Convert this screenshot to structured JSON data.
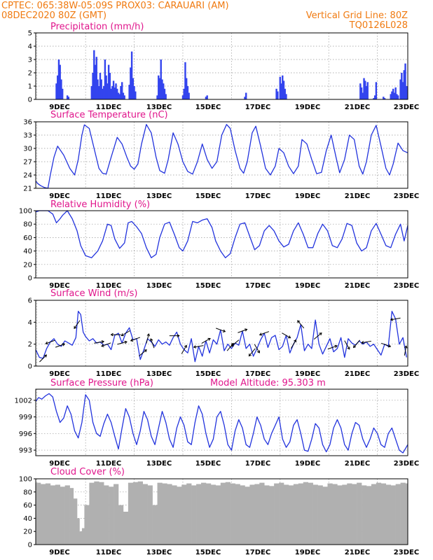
{
  "header": {
    "line1_left": "CPTEC:   065:38W-05:09S   PROX03: CARAUARI (AM)",
    "line2_left": "08DEC2020 80Z (GMT)",
    "line2_right": "Vertical Grid Line: 80Z",
    "line3_right": "TQ0126L028"
  },
  "colors": {
    "line": "#2233dd",
    "bar": "#3344ee",
    "cloud": "#b0b0b0",
    "title": "#e0168c",
    "header": "#f07a10"
  },
  "x_ticks": [
    "9DEC",
    "11DEC",
    "13DEC",
    "15DEC",
    "17DEC",
    "19DEC",
    "21DEC",
    "23DEC"
  ],
  "chart_data": [
    {
      "id": "precip",
      "type": "bar",
      "title": "Precipitation (mm/h)",
      "x_range": [
        0,
        15.3
      ],
      "ylim": [
        0,
        5
      ],
      "yticks": [
        "0",
        "1",
        "2",
        "3",
        "4",
        "5"
      ],
      "x": [
        0.85,
        0.9,
        0.95,
        1.0,
        1.05,
        1.1,
        1.3,
        1.35,
        2.3,
        2.35,
        2.4,
        2.45,
        2.5,
        2.55,
        2.6,
        2.65,
        2.7,
        2.75,
        2.8,
        2.85,
        2.9,
        2.95,
        3.0,
        3.05,
        3.1,
        3.15,
        3.2,
        3.25,
        3.3,
        3.35,
        3.4,
        3.45,
        3.5,
        3.55,
        3.6,
        3.65,
        3.85,
        3.9,
        3.95,
        4.0,
        4.05,
        4.1,
        5.0,
        5.05,
        5.1,
        5.15,
        5.2,
        5.25,
        5.3,
        5.35,
        6.05,
        6.1,
        6.15,
        6.2,
        6.25,
        6.3,
        7.0,
        7.05,
        8.6,
        8.65,
        9.9,
        9.95,
        10.05,
        10.1,
        10.15,
        10.2,
        10.25,
        10.3,
        13.35,
        13.4,
        13.45,
        13.5,
        13.55,
        13.6,
        13.65,
        13.9,
        13.95,
        14.0,
        14.3,
        14.35,
        14.6,
        14.65,
        14.7,
        14.75,
        14.8,
        14.85,
        14.9,
        15.0,
        15.05,
        15.1,
        15.15,
        15.2,
        15.25
      ],
      "values": [
        1.2,
        1.8,
        3.0,
        2.6,
        1.5,
        0.8,
        0.3,
        0.2,
        1.0,
        2.0,
        3.7,
        2.6,
        3.2,
        1.5,
        1.0,
        2.0,
        1.5,
        0.8,
        1.0,
        3.0,
        1.8,
        1.2,
        2.6,
        2.0,
        0.8,
        1.0,
        1.4,
        0.9,
        1.2,
        0.8,
        0.5,
        0.4,
        1.0,
        1.3,
        0.5,
        0.3,
        1.1,
        2.4,
        3.6,
        1.6,
        1.0,
        0.6,
        0.3,
        1.8,
        1.6,
        3.0,
        1.5,
        1.2,
        0.8,
        0.4,
        0.3,
        0.8,
        2.8,
        1.6,
        1.0,
        0.5,
        0.2,
        0.3,
        0.2,
        0.5,
        0.8,
        0.6,
        1.7,
        1.2,
        1.8,
        1.4,
        0.8,
        0.4,
        1.2,
        0.9,
        0.5,
        1.6,
        1.4,
        1.0,
        1.3,
        0.1,
        0.3,
        1.3,
        0.2,
        0.1,
        0.4,
        0.6,
        0.8,
        0.5,
        0.9,
        0.4,
        0.3,
        1.5,
        2.0,
        1.3,
        2.2,
        2.7,
        1.0
      ]
    },
    {
      "id": "temp",
      "type": "line",
      "title": "Surface Temperature (nC)",
      "x_range": [
        0,
        15.3
      ],
      "ylim": [
        21,
        36
      ],
      "yticks": [
        "21",
        "24",
        "27",
        "30",
        "33",
        "36"
      ],
      "x": [
        0.0,
        0.1,
        0.2,
        0.35,
        0.5,
        0.6,
        0.75,
        0.9,
        1.15,
        1.4,
        1.6,
        1.75,
        1.9,
        2.0,
        2.2,
        2.4,
        2.6,
        2.75,
        2.9,
        3.1,
        3.35,
        3.55,
        3.75,
        3.9,
        4.05,
        4.2,
        4.35,
        4.55,
        4.75,
        4.95,
        5.1,
        5.3,
        5.45,
        5.65,
        5.85,
        6.05,
        6.25,
        6.45,
        6.65,
        6.85,
        7.05,
        7.25,
        7.45,
        7.65,
        7.85,
        8.0,
        8.2,
        8.4,
        8.55,
        8.7,
        8.9,
        9.05,
        9.25,
        9.45,
        9.65,
        9.85,
        10.0,
        10.2,
        10.4,
        10.6,
        10.8,
        10.95,
        11.15,
        11.35,
        11.55,
        11.75,
        11.95,
        12.15,
        12.35,
        12.5,
        12.7,
        12.9,
        13.1,
        13.3,
        13.45,
        13.6,
        13.8,
        14.0,
        14.2,
        14.4,
        14.55,
        14.7,
        14.9,
        15.1,
        15.3
      ],
      "values": [
        22.6,
        22.0,
        21.6,
        21.2,
        21.0,
        24.0,
        28.0,
        30.5,
        28.5,
        25.5,
        24.0,
        27.5,
        33.0,
        35.3,
        34.5,
        30.0,
        25.5,
        24.4,
        24.2,
        28.0,
        32.5,
        31.0,
        28.0,
        26.0,
        25.3,
        26.5,
        31.0,
        35.4,
        33.5,
        28.0,
        25.0,
        24.4,
        27.5,
        33.5,
        31.0,
        27.0,
        24.8,
        24.2,
        27.0,
        31.0,
        27.5,
        25.5,
        27.0,
        33.0,
        35.4,
        34.5,
        29.5,
        25.5,
        24.4,
        27.0,
        33.5,
        35.0,
        30.5,
        25.5,
        24.0,
        26.0,
        30.0,
        29.0,
        26.0,
        24.3,
        26.0,
        32.0,
        31.0,
        27.5,
        24.3,
        24.6,
        29.5,
        33.0,
        28.0,
        24.5,
        27.5,
        33.0,
        32.0,
        26.0,
        24.2,
        27.0,
        33.0,
        35.2,
        30.5,
        25.5,
        24.0,
        26.5,
        31.2,
        29.5,
        29.0
      ]
    },
    {
      "id": "rh",
      "type": "line",
      "title": "Relative Humidity (%)",
      "x_range": [
        0,
        15.3
      ],
      "ylim": [
        0,
        100
      ],
      "yticks": [
        "0",
        "20",
        "40",
        "60",
        "80",
        "100"
      ],
      "x": [
        0.0,
        0.15,
        0.3,
        0.5,
        0.7,
        0.85,
        1.0,
        1.1,
        1.3,
        1.5,
        1.7,
        1.85,
        2.05,
        2.3,
        2.55,
        2.75,
        2.95,
        3.1,
        3.25,
        3.45,
        3.65,
        3.8,
        3.95,
        4.15,
        4.35,
        4.55,
        4.75,
        4.95,
        5.1,
        5.3,
        5.5,
        5.7,
        5.9,
        6.05,
        6.25,
        6.45,
        6.65,
        6.85,
        7.05,
        7.25,
        7.4,
        7.6,
        7.8,
        8.0,
        8.2,
        8.4,
        8.6,
        8.8,
        9.0,
        9.2,
        9.4,
        9.6,
        9.8,
        10.0,
        10.2,
        10.4,
        10.6,
        10.8,
        11.0,
        11.2,
        11.4,
        11.6,
        11.8,
        12.0,
        12.2,
        12.4,
        12.6,
        12.8,
        13.0,
        13.2,
        13.4,
        13.6,
        13.8,
        14.0,
        14.2,
        14.4,
        14.6,
        14.8,
        15.0,
        15.15,
        15.3
      ],
      "values": [
        98,
        100,
        100,
        100,
        95,
        82,
        88,
        93,
        100,
        88,
        70,
        48,
        33,
        30,
        40,
        55,
        80,
        78,
        58,
        44,
        52,
        82,
        84,
        76,
        66,
        45,
        30,
        35,
        60,
        80,
        83,
        65,
        45,
        40,
        55,
        84,
        82,
        86,
        88,
        75,
        55,
        40,
        30,
        36,
        60,
        80,
        82,
        62,
        42,
        48,
        70,
        78,
        70,
        55,
        46,
        50,
        70,
        82,
        65,
        45,
        45,
        66,
        80,
        70,
        48,
        45,
        58,
        81,
        78,
        52,
        40,
        45,
        70,
        81,
        65,
        48,
        45,
        65,
        80,
        55,
        78
      ]
    },
    {
      "id": "wind",
      "type": "line",
      "title": "Surface Wind (m/s)",
      "x_range": [
        0,
        15.3
      ],
      "ylim": [
        0,
        6
      ],
      "yticks": [
        "0",
        "2",
        "4",
        "6"
      ],
      "x": [
        0.0,
        0.15,
        0.3,
        0.45,
        0.6,
        0.75,
        0.9,
        1.05,
        1.2,
        1.35,
        1.5,
        1.65,
        1.75,
        1.85,
        1.95,
        2.05,
        2.2,
        2.35,
        2.5,
        2.65,
        2.8,
        2.95,
        3.1,
        3.25,
        3.4,
        3.55,
        3.7,
        3.85,
        4.0,
        4.15,
        4.3,
        4.45,
        4.6,
        4.75,
        4.9,
        5.05,
        5.2,
        5.35,
        5.5,
        5.65,
        5.8,
        5.95,
        6.1,
        6.25,
        6.4,
        6.55,
        6.7,
        6.85,
        7.0,
        7.15,
        7.3,
        7.45,
        7.6,
        7.75,
        7.9,
        8.05,
        8.2,
        8.35,
        8.5,
        8.65,
        8.8,
        8.95,
        9.1,
        9.25,
        9.4,
        9.55,
        9.7,
        9.85,
        10.0,
        10.15,
        10.3,
        10.45,
        10.6,
        10.75,
        10.9,
        11.05,
        11.2,
        11.35,
        11.5,
        11.65,
        11.8,
        11.95,
        12.1,
        12.25,
        12.4,
        12.55,
        12.7,
        12.85,
        13.0,
        13.15,
        13.3,
        13.45,
        13.6,
        13.75,
        13.9,
        14.05,
        14.2,
        14.35,
        14.5,
        14.65,
        14.8,
        14.95,
        15.1,
        15.25
      ],
      "values": [
        1.5,
        0.8,
        0.7,
        1.6,
        2.2,
        2.5,
        2.0,
        1.8,
        2.3,
        2.1,
        1.9,
        2.6,
        5.0,
        4.7,
        3.1,
        2.7,
        2.3,
        2.5,
        2.1,
        2.2,
        1.9,
        2.0,
        1.5,
        2.8,
        3.0,
        2.1,
        3.0,
        3.5,
        2.4,
        2.5,
        0.6,
        1.5,
        2.5,
        2.2,
        1.8,
        2.4,
        2.0,
        2.2,
        1.9,
        2.6,
        3.1,
        2.0,
        1.5,
        1.2,
        2.5,
        0.4,
        1.8,
        0.9,
        2.3,
        1.2,
        2.4,
        2.0,
        3.3,
        1.4,
        2.0,
        1.6,
        2.1,
        1.9,
        3.2,
        1.6,
        2.0,
        0.9,
        1.6,
        2.4,
        3.0,
        1.7,
        2.6,
        2.8,
        1.5,
        1.8,
        2.8,
        1.2,
        2.0,
        2.6,
        3.8,
        1.4,
        2.0,
        1.6,
        4.2,
        2.0,
        1.1,
        1.8,
        2.5,
        1.3,
        1.6,
        2.6,
        0.8,
        2.5,
        2.1,
        1.9,
        2.3,
        2.0,
        2.2,
        1.8,
        2.0,
        1.5,
        1.0,
        2.0,
        1.8,
        5.0,
        4.3,
        2.0,
        2.6,
        0.8
      ],
      "arrows_x": [
        0.3,
        0.6,
        1.0,
        1.7,
        2.6,
        2.9,
        3.3,
        3.55,
        3.7,
        4.1,
        4.4,
        4.6,
        4.8,
        5.7,
        6.1,
        6.7,
        7.0,
        7.6,
        8.0,
        8.2,
        8.5,
        8.9,
        9.1,
        9.4,
        10.3,
        10.6,
        10.9,
        11.6,
        12.2,
        12.8,
        13.2,
        13.6,
        14.4,
        14.8,
        15.2
      ],
      "arrows_deg": [
        45,
        200,
        20,
        235,
        10,
        200,
        180,
        15,
        210,
        200,
        40,
        75,
        110,
        0,
        60,
        190,
        30,
        340,
        50,
        220,
        20,
        230,
        300,
        200,
        330,
        60,
        130,
        40,
        20,
        300,
        230,
        190,
        340,
        190,
        80
      ]
    },
    {
      "id": "press",
      "type": "line",
      "title": "Surface Pressure (hPa)",
      "subtitle": "Model Altitude: 95.303 m",
      "x_range": [
        0,
        15.3
      ],
      "ylim": [
        992,
        1004
      ],
      "yticks": [
        "993",
        "996",
        "999",
        "1002"
      ],
      "x": [
        0.0,
        0.12,
        0.25,
        0.4,
        0.55,
        0.7,
        0.85,
        1.0,
        1.15,
        1.3,
        1.45,
        1.6,
        1.75,
        1.9,
        2.05,
        2.2,
        2.35,
        2.5,
        2.65,
        2.8,
        2.95,
        3.1,
        3.25,
        3.4,
        3.55,
        3.7,
        3.85,
        4.0,
        4.15,
        4.3,
        4.45,
        4.6,
        4.75,
        4.9,
        5.05,
        5.2,
        5.35,
        5.5,
        5.65,
        5.8,
        5.95,
        6.1,
        6.25,
        6.4,
        6.55,
        6.7,
        6.85,
        7.0,
        7.15,
        7.3,
        7.45,
        7.6,
        7.75,
        7.9,
        8.05,
        8.2,
        8.35,
        8.5,
        8.65,
        8.8,
        8.95,
        9.1,
        9.25,
        9.4,
        9.55,
        9.7,
        9.85,
        10.0,
        10.15,
        10.3,
        10.45,
        10.6,
        10.75,
        10.9,
        11.05,
        11.2,
        11.35,
        11.5,
        11.65,
        11.8,
        11.95,
        12.1,
        12.25,
        12.4,
        12.55,
        12.7,
        12.85,
        13.0,
        13.15,
        13.3,
        13.45,
        13.6,
        13.75,
        13.9,
        14.05,
        14.2,
        14.35,
        14.5,
        14.65,
        14.8,
        14.95,
        15.1,
        15.3
      ],
      "values": [
        1001.8,
        1002.5,
        1002.2,
        1002.8,
        1003.2,
        1002.6,
        1000.0,
        998.0,
        998.8,
        1001.0,
        999.5,
        996.5,
        995.2,
        998.0,
        1003.0,
        1002.0,
        998.0,
        996.0,
        995.5,
        997.8,
        999.5,
        998.0,
        995.5,
        993.2,
        997.0,
        1000.5,
        999.0,
        996.0,
        994.0,
        996.5,
        1000.0,
        998.5,
        995.5,
        994.0,
        997.0,
        1000.0,
        998.0,
        995.0,
        993.5,
        997.0,
        999.0,
        997.5,
        994.5,
        994.0,
        998.0,
        1001.0,
        999.5,
        996.0,
        993.5,
        995.0,
        999.0,
        1000.0,
        997.5,
        994.0,
        993.0,
        996.5,
        998.5,
        997.0,
        994.0,
        993.5,
        996.0,
        999.0,
        997.5,
        995.0,
        994.0,
        996.0,
        997.5,
        999.0,
        995.0,
        993.5,
        994.5,
        997.5,
        998.5,
        996.0,
        993.0,
        992.8,
        995.0,
        997.8,
        997.0,
        994.0,
        992.7,
        994.0,
        997.0,
        998.5,
        997.0,
        994.0,
        993.0,
        996.0,
        998.0,
        997.5,
        995.0,
        993.5,
        995.0,
        997.0,
        996.0,
        994.0,
        993.5,
        996.0,
        997.0,
        995.0,
        993.0,
        992.5,
        994.0
      ]
    },
    {
      "id": "cloud",
      "type": "area",
      "title": "Cloud Cover (%)",
      "x_range": [
        0,
        15.3
      ],
      "ylim": [
        0,
        100
      ],
      "yticks": [
        "0",
        "20",
        "40",
        "60",
        "80",
        "100"
      ],
      "x": [
        0.0,
        0.2,
        0.4,
        0.6,
        0.8,
        1.0,
        1.2,
        1.4,
        1.55,
        1.7,
        1.8,
        1.9,
        2.0,
        2.2,
        2.4,
        2.6,
        2.8,
        3.0,
        3.2,
        3.4,
        3.6,
        3.8,
        4.0,
        4.2,
        4.4,
        4.6,
        4.8,
        5.0,
        5.2,
        5.4,
        5.6,
        5.8,
        6.0,
        6.2,
        6.4,
        6.6,
        6.8,
        7.0,
        7.2,
        7.4,
        7.6,
        7.8,
        8.0,
        8.2,
        8.4,
        8.6,
        8.8,
        9.0,
        9.2,
        9.4,
        9.6,
        9.8,
        10.0,
        10.2,
        10.4,
        10.6,
        10.8,
        11.0,
        11.2,
        11.4,
        11.6,
        11.8,
        12.0,
        12.2,
        12.4,
        12.6,
        12.8,
        13.0,
        13.2,
        13.4,
        13.6,
        13.8,
        14.0,
        14.2,
        14.4,
        14.6,
        14.8,
        15.0,
        15.2,
        15.3
      ],
      "values": [
        94,
        92,
        93,
        90,
        91,
        88,
        90,
        86,
        70,
        40,
        20,
        25,
        60,
        94,
        96,
        95,
        90,
        88,
        92,
        60,
        50,
        94,
        95,
        96,
        92,
        90,
        60,
        94,
        93,
        92,
        90,
        88,
        91,
        93,
        90,
        92,
        94,
        93,
        91,
        90,
        94,
        95,
        93,
        92,
        90,
        88,
        91,
        92,
        94,
        90,
        89,
        93,
        94,
        91,
        90,
        92,
        93,
        95,
        94,
        91,
        90,
        88,
        93,
        92,
        90,
        91,
        93,
        92,
        94,
        90,
        89,
        92,
        94,
        93,
        91,
        90,
        92,
        94,
        93,
        92
      ]
    }
  ]
}
